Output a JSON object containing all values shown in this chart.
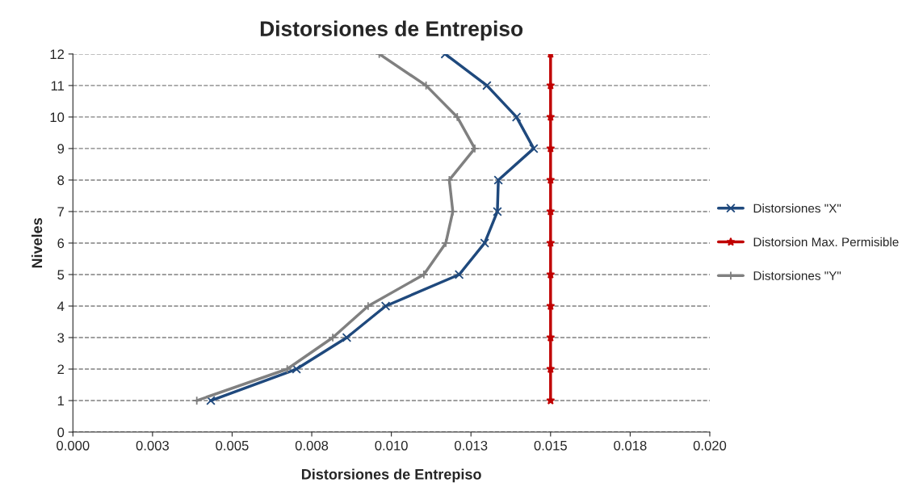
{
  "chart_data": {
    "type": "line",
    "title": "Distorsiones de Entrepiso",
    "xlabel": "Distorsiones de Entrepiso",
    "ylabel": "Niveles",
    "xlim": [
      0,
      0.02
    ],
    "xticks": [
      {
        "value": 0,
        "label": "0.000"
      },
      {
        "value": 0.0025,
        "label": "0.003"
      },
      {
        "value": 0.005,
        "label": "0.005"
      },
      {
        "value": 0.0075,
        "label": "0.008"
      },
      {
        "value": 0.01,
        "label": "0.010"
      },
      {
        "value": 0.0125,
        "label": "0.013"
      },
      {
        "value": 0.015,
        "label": "0.015"
      },
      {
        "value": 0.0175,
        "label": "0.018"
      },
      {
        "value": 0.02,
        "label": "0.020"
      }
    ],
    "ylim": [
      0,
      12
    ],
    "yticks": [
      0,
      1,
      2,
      3,
      4,
      5,
      6,
      7,
      8,
      9,
      10,
      11,
      12
    ],
    "grid": "y",
    "legend": "right",
    "series": [
      {
        "name": "Distorsiones \"X\"",
        "color": "#1f497d",
        "marker": "cross",
        "x": [
          0.00433,
          0.00702,
          0.0086,
          0.00982,
          0.01213,
          0.01293,
          0.01333,
          0.01336,
          0.01447,
          0.01393,
          0.013,
          0.01169
        ],
        "values": [
          1,
          2,
          3,
          4,
          5,
          6,
          7,
          8,
          9,
          10,
          11,
          12
        ]
      },
      {
        "name": "Distorsion Max. Permisible",
        "color": "#c00000",
        "marker": "star",
        "x": [
          0.015,
          0.015,
          0.015,
          0.015,
          0.015,
          0.015,
          0.015,
          0.015,
          0.015,
          0.015,
          0.015,
          0.015
        ],
        "values": [
          1,
          2,
          3,
          4,
          5,
          6,
          7,
          8,
          9,
          10,
          11,
          12
        ]
      },
      {
        "name": "Distorsiones \"Y\"",
        "color": "#808080",
        "marker": "plus",
        "x": [
          0.00389,
          0.00673,
          0.00816,
          0.00927,
          0.01102,
          0.01171,
          0.01193,
          0.01182,
          0.01262,
          0.01207,
          0.01109,
          0.00962
        ],
        "values": [
          1,
          2,
          3,
          4,
          5,
          6,
          7,
          8,
          9,
          10,
          11,
          12
        ]
      }
    ]
  }
}
